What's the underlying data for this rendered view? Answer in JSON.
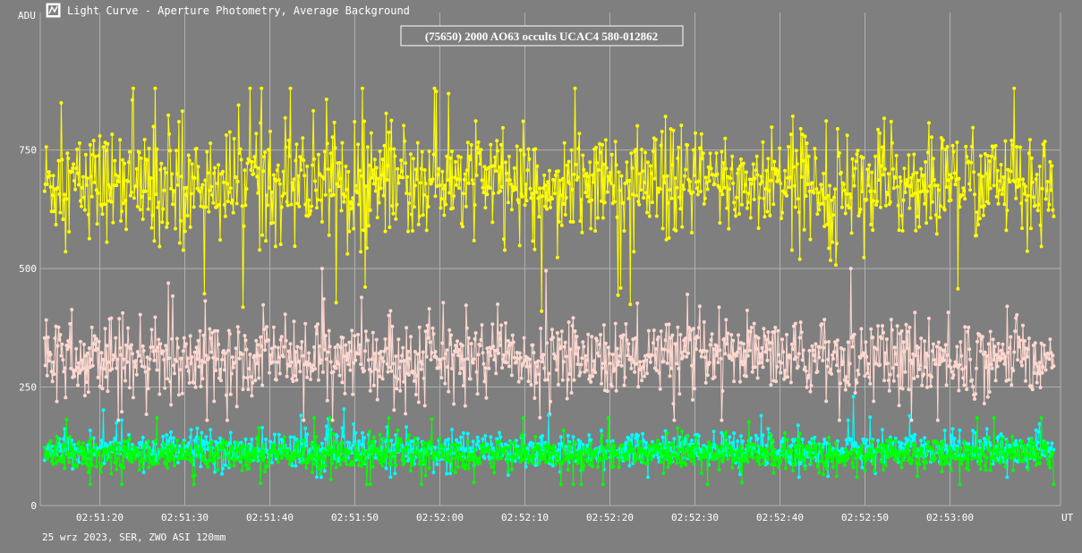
{
  "window": {
    "title": "Light Curve - Aperture Photometry, Average Background",
    "app_icon": "chart-app-icon"
  },
  "footer": {
    "info": "25 wrz 2023, SER, ZWO ASI 120mm"
  },
  "colors": {
    "background": "#7f7f7f",
    "grid": "#b0b0b0",
    "target": "#ffff00",
    "comp1": "#ffd8d0",
    "comp2": "#00ffff",
    "comp3": "#00ff00"
  },
  "chart_data": {
    "type": "scatter",
    "title": "(75650) 2000 AO63 occults UCAC4 580-012862",
    "xlabel": "UT",
    "ylabel": "ADU",
    "xlim": [
      "02:51:13",
      "02:53:13"
    ],
    "ylim": [
      0,
      1040
    ],
    "grid": true,
    "y_ticks": [
      {
        "value": 0,
        "label": "0"
      },
      {
        "value": 250,
        "label": "250"
      },
      {
        "value": 500,
        "label": "500"
      },
      {
        "value": 750,
        "label": "750"
      }
    ],
    "x_ticks": [
      {
        "time": "02:51:20",
        "label": "02:51:20"
      },
      {
        "time": "02:51:30",
        "label": "02:51:30"
      },
      {
        "time": "02:51:40",
        "label": "02:51:40"
      },
      {
        "time": "02:51:50",
        "label": "02:51:50"
      },
      {
        "time": "02:52:00",
        "label": "02:52:00"
      },
      {
        "time": "02:52:10",
        "label": "02:52:10"
      },
      {
        "time": "02:52:20",
        "label": "02:52:20"
      },
      {
        "time": "02:52:30",
        "label": "02:52:30"
      },
      {
        "time": "02:52:40",
        "label": "02:52:40"
      },
      {
        "time": "02:52:50",
        "label": "02:52:50"
      },
      {
        "time": "02:53:00",
        "label": "02:53:00"
      }
    ],
    "series": [
      {
        "color": "#ffff00",
        "mean": 680,
        "spread": 55,
        "outlier_spread": 95,
        "min": 410,
        "max": 880
      },
      {
        "color": "#ffd8d0",
        "mean": 312,
        "spread": 38,
        "outlier_spread": 60,
        "min": 180,
        "max": 500
      },
      {
        "color": "#00ffff",
        "mean": 118,
        "spread": 17,
        "outlier_spread": 30,
        "min": 60,
        "max": 230
      },
      {
        "color": "#00ff00",
        "mean": 108,
        "spread": 16,
        "outlier_spread": 28,
        "min": 45,
        "max": 185
      }
    ]
  }
}
